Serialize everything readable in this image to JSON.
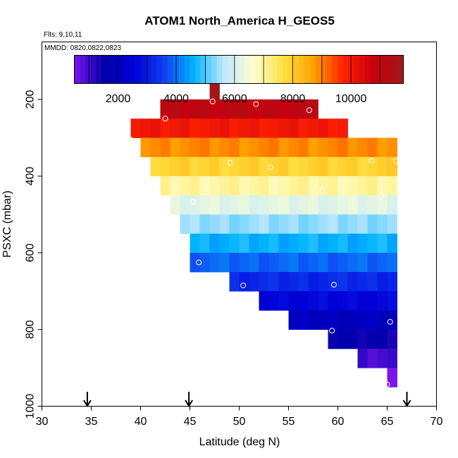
{
  "chart_data": {
    "type": "heatmap",
    "title": "ATOM1 North_America H_GEOS5",
    "flights_label": "Flts: 9,10,11",
    "dates_label": "MMDD: 0820,0822,0823",
    "xlabel": "Latitude (deg N)",
    "ylabel": "PSXC (mbar)",
    "xlim": [
      30,
      70
    ],
    "ylim": [
      1000,
      50
    ],
    "x_ticks": [
      30,
      35,
      40,
      45,
      50,
      55,
      60,
      65,
      70
    ],
    "y_ticks": [
      200,
      400,
      600,
      800,
      1000
    ],
    "colorbar": {
      "range": [
        500,
        11800
      ],
      "ticks": [
        2000,
        4000,
        6000,
        8000,
        10000
      ],
      "stops": [
        "#7b14ef",
        "#0000a8",
        "#0000d8",
        "#1040f0",
        "#00b4ff",
        "#bfe8ff",
        "#ffffd0",
        "#ffe040",
        "#ffa000",
        "#ff2000",
        "#c80010",
        "#a01818"
      ]
    },
    "cell_width_deg": 1,
    "cell_height_mbar": 50,
    "rows": [
      {
        "p": 175,
        "lat_min": 47,
        "lat_max": 48,
        "value": 11800
      },
      {
        "p": 225,
        "lat_min": 42,
        "lat_max": 58,
        "value": 11000
      },
      {
        "p": 275,
        "lat_min": 39,
        "lat_max": 61,
        "value": 10000
      },
      {
        "p": 325,
        "lat_min": 40,
        "lat_max": 66,
        "value": 8900
      },
      {
        "p": 375,
        "lat_min": 41,
        "lat_max": 66,
        "value": 7900
      },
      {
        "p": 425,
        "lat_min": 42,
        "lat_max": 66,
        "value": 7000
      },
      {
        "p": 475,
        "lat_min": 43,
        "lat_max": 66,
        "value": 6200
      },
      {
        "p": 525,
        "lat_min": 44,
        "lat_max": 66,
        "value": 5400
      },
      {
        "p": 575,
        "lat_min": 45,
        "lat_max": 66,
        "value": 4600
      },
      {
        "p": 625,
        "lat_min": 45,
        "lat_max": 66,
        "value": 3900
      },
      {
        "p": 675,
        "lat_min": 49,
        "lat_max": 66,
        "value": 3200
      },
      {
        "p": 725,
        "lat_min": 52,
        "lat_max": 66,
        "value": 2600
      },
      {
        "p": 775,
        "lat_min": 55,
        "lat_max": 66,
        "value": 2000
      },
      {
        "p": 825,
        "lat_min": 59,
        "lat_max": 66,
        "value": 1500
      },
      {
        "p": 875,
        "lat_min": 62,
        "lat_max": 66,
        "value": 1000
      },
      {
        "p": 925,
        "lat_min": 65,
        "lat_max": 66,
        "value": 600
      }
    ],
    "points": [
      {
        "lat": 47.3,
        "p": 205
      },
      {
        "lat": 51.7,
        "p": 212
      },
      {
        "lat": 57.1,
        "p": 228
      },
      {
        "lat": 42.5,
        "p": 250
      },
      {
        "lat": 39.0,
        "p": 305
      },
      {
        "lat": 49.1,
        "p": 365
      },
      {
        "lat": 53.2,
        "p": 377
      },
      {
        "lat": 63.4,
        "p": 360
      },
      {
        "lat": 65.9,
        "p": 360
      },
      {
        "lat": 58.4,
        "p": 437
      },
      {
        "lat": 64.4,
        "p": 452
      },
      {
        "lat": 45.3,
        "p": 467
      },
      {
        "lat": 45.9,
        "p": 625
      },
      {
        "lat": 50.4,
        "p": 685
      },
      {
        "lat": 59.6,
        "p": 683
      },
      {
        "lat": 65.3,
        "p": 780
      },
      {
        "lat": 59.4,
        "p": 803
      },
      {
        "lat": 65.0,
        "p": 943
      }
    ],
    "arrows_lat": [
      34.6,
      44.9,
      67.0
    ]
  }
}
